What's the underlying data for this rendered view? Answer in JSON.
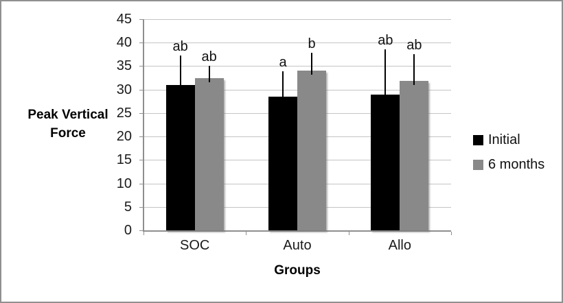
{
  "chart_data": {
    "type": "bar",
    "title": "",
    "categories": [
      "SOC",
      "Auto",
      "Allo"
    ],
    "series": [
      {
        "name": "Initial",
        "color": "#000000",
        "values": [
          31,
          28.5,
          29
        ],
        "err_plus": [
          6.2,
          5.4,
          9.5
        ],
        "sig_labels": [
          "ab",
          "a",
          "ab"
        ]
      },
      {
        "name": "6 months",
        "color": "#898989",
        "values": [
          32.5,
          34,
          31.8
        ],
        "err_plus": [
          2.5,
          3.9,
          5.8
        ],
        "sig_labels": [
          "ab",
          "b",
          "ab"
        ]
      }
    ],
    "xlabel": "Groups",
    "ylabel": "Peak Vertical Force",
    "ylabel_lines": [
      "Peak Vertical",
      "Force"
    ],
    "ylim": [
      0,
      45
    ],
    "yticks": [
      0,
      5,
      10,
      15,
      20,
      25,
      30,
      35,
      40,
      45
    ],
    "grid": true,
    "legend_position": "right",
    "error_bars": "plus-only"
  },
  "colors": {
    "gridline": "#c4c4c4",
    "axis": "#8e8e8e",
    "frame_border": "#909090",
    "text": "#1a1a1a",
    "error_bar": "#000000"
  }
}
